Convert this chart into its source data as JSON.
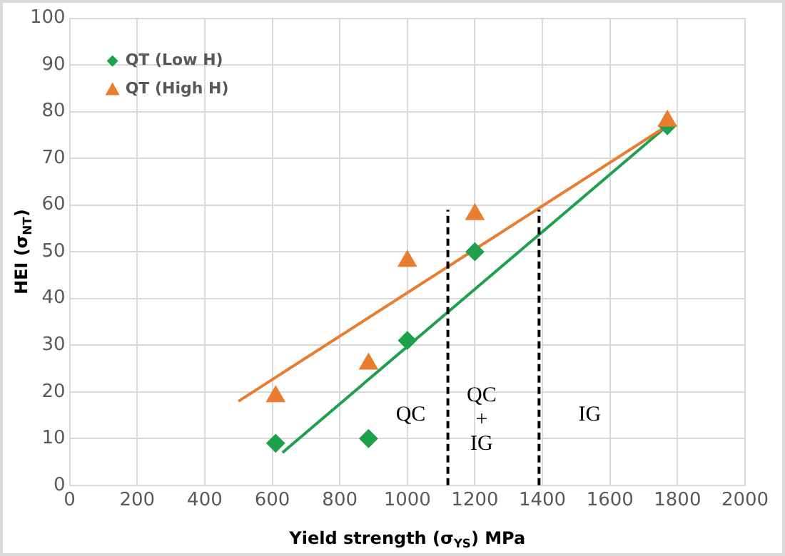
{
  "chart_data": {
    "type": "scatter",
    "xlabel": "Yield strength (σ$_{YS}$) MPa",
    "ylabel": "HEI (σ$_{NT}$)",
    "xlim": [
      0,
      2000
    ],
    "xticks": [
      0,
      200,
      400,
      600,
      800,
      1000,
      1200,
      1400,
      1600,
      1800,
      2000
    ],
    "ylim": [
      0,
      100
    ],
    "yticks": [
      0,
      10,
      20,
      30,
      40,
      50,
      60,
      70,
      80,
      90,
      100
    ],
    "grid": true,
    "legend": "top left",
    "series": [
      {
        "name": "QT (Low H)",
        "marker": "diamond",
        "color": "#1fa04a",
        "x": [
          610,
          885,
          1000,
          1200,
          1770
        ],
        "values": [
          9,
          10,
          31,
          50,
          77
        ]
      },
      {
        "name": "QT (High H)",
        "marker": "triangle",
        "color": "#e87d2f",
        "x": [
          610,
          885,
          1000,
          1200,
          1770
        ],
        "values": [
          19,
          26,
          48,
          58,
          78
        ]
      },
      {
        "type": "line",
        "marker": "none",
        "color": "#1fa04a",
        "x": [
          630,
          1770
        ],
        "values": [
          7,
          77
        ]
      },
      {
        "type": "line",
        "marker": "none",
        "color": "#e87d2f",
        "x": [
          500,
          1770
        ],
        "values": [
          18,
          77
        ]
      },
      {
        "type": "line",
        "marker": "none",
        "line_style": "dashed",
        "color": "#000000",
        "x": [
          1120,
          1120
        ],
        "values": [
          0,
          59
        ]
      },
      {
        "type": "line",
        "marker": "none",
        "line_style": "dashed",
        "color": "#000000",
        "x": [
          1390,
          1390
        ],
        "values": [
          0,
          59
        ]
      }
    ],
    "annotations": [
      "QC",
      "QC\n+\nIG",
      "IG"
    ]
  }
}
